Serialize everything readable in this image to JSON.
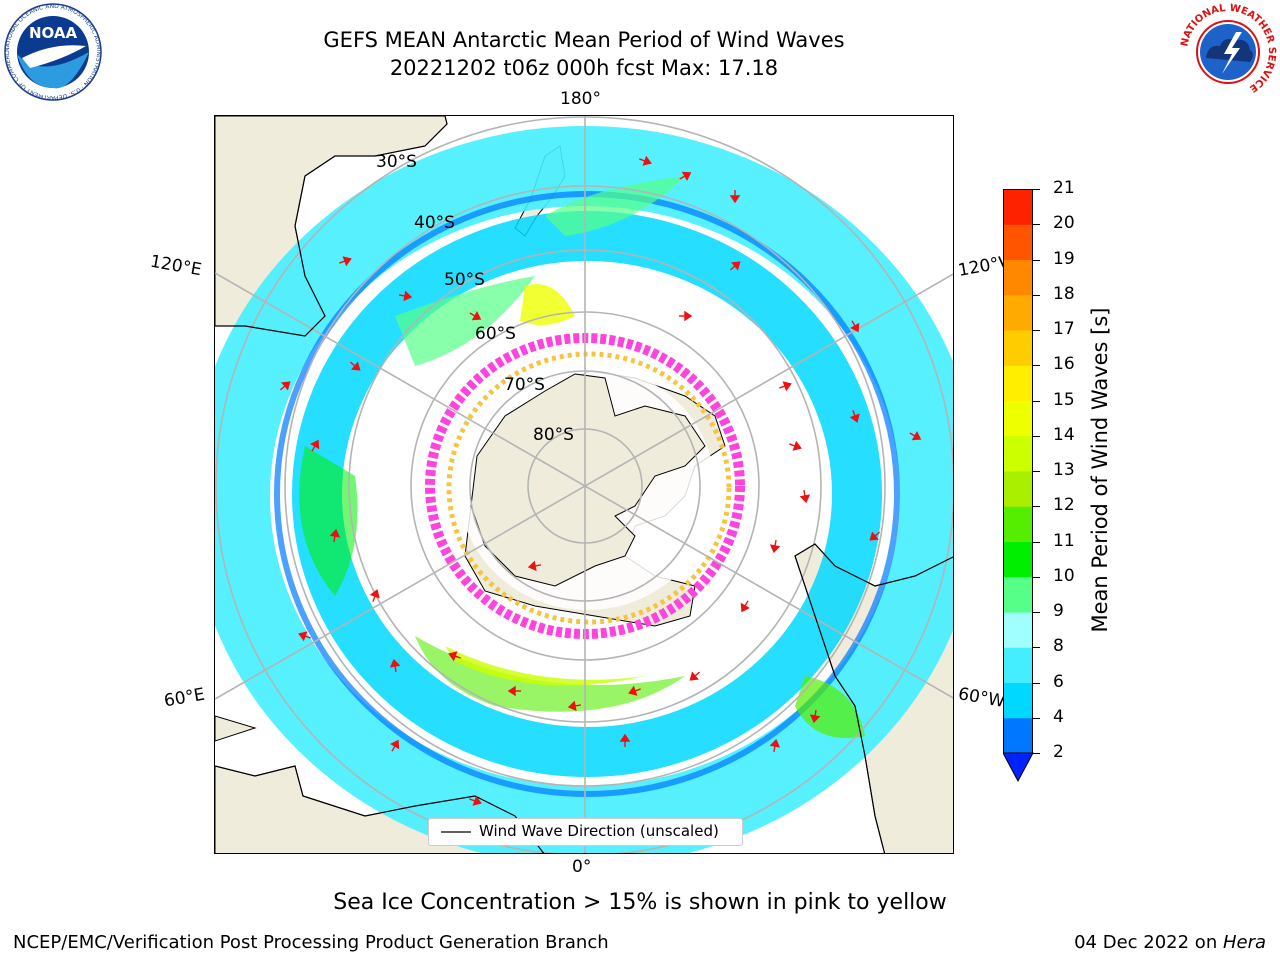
{
  "header": {
    "title_line1": "GEFS MEAN Antarctic Mean Period of Wind Waves",
    "title_line2": "20221202 t06z 000h fcst   Max: 17.18"
  },
  "logos": {
    "noaa_text": "NOAA",
    "noaa_ring_text": "NATIONAL OCEANIC AND ATMOSPHERIC ADMINISTRATION · U.S. DEPARTMENT OF COMMERCE",
    "nws_ring_text": "NATIONAL WEATHER SERVICE"
  },
  "map": {
    "projection": "south polar stereographic",
    "lon_labels": {
      "top": "180°",
      "bottom": "0°",
      "upper_left": "120°E",
      "upper_right": "120°W",
      "lower_left": "60°E",
      "lower_right": "60°W"
    },
    "lat_labels": [
      "30°S",
      "40°S",
      "50°S",
      "60°S",
      "70°S",
      "80°S"
    ],
    "legend_label": "Wind Wave Direction (unscaled)",
    "colors": {
      "land": "#efecdc",
      "ice_pink": "#ff44dd",
      "ice_yellow": "#f5c542",
      "arrow": "#ee1111"
    }
  },
  "colorbar": {
    "label": "Mean Period of Wind Waves [s]",
    "ticks": [
      "2",
      "4",
      "6",
      "8",
      "9",
      "10",
      "11",
      "12",
      "13",
      "14",
      "15",
      "16",
      "17",
      "18",
      "19",
      "20",
      "21"
    ],
    "colors": [
      "#0077ff",
      "#00d8ff",
      "#44eeff",
      "#a0ffff",
      "#55ff88",
      "#00ee00",
      "#55ee00",
      "#aaee00",
      "#ccff00",
      "#eeff00",
      "#ffee00",
      "#ffcc00",
      "#ffaa00",
      "#ff8800",
      "#ff5500",
      "#ff2200",
      "#ff0000"
    ],
    "extend_color": "#0022ff"
  },
  "caption": "Sea Ice Concentration > 15% is shown in pink to yellow",
  "footer": {
    "left": "NCEP/EMC/Verification Post Processing Product Generation Branch",
    "right_date": "04 Dec 2022 on ",
    "right_host": "Hera"
  }
}
